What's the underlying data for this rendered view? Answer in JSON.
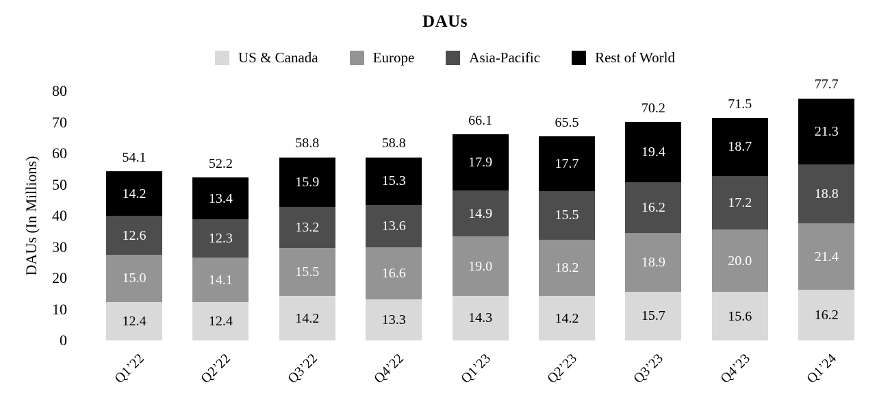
{
  "chart_data": {
    "type": "bar",
    "stacked": true,
    "title": "DAUs",
    "ylabel": "DAUs (In Millions)",
    "xlabel": "",
    "categories": [
      "Q1’22",
      "Q2’22",
      "Q3’22",
      "Q4’22",
      "Q1’23",
      "Q2’23",
      "Q3’23",
      "Q4’23",
      "Q1’24"
    ],
    "series": [
      {
        "name": "US & Canada",
        "color": "#d9d9d9",
        "label_color": "#000000",
        "values": [
          12.4,
          12.4,
          14.2,
          13.3,
          14.3,
          14.2,
          15.7,
          15.6,
          16.2
        ]
      },
      {
        "name": "Europe",
        "color": "#949494",
        "label_color": "#ffffff",
        "values": [
          15.0,
          14.1,
          15.5,
          16.6,
          19.0,
          18.2,
          18.9,
          20.0,
          21.4
        ]
      },
      {
        "name": "Asia-Pacific",
        "color": "#4d4d4d",
        "label_color": "#ffffff",
        "values": [
          12.6,
          12.3,
          13.2,
          13.6,
          14.9,
          15.5,
          16.2,
          17.2,
          18.8
        ]
      },
      {
        "name": "Rest of World",
        "color": "#000000",
        "label_color": "#ffffff",
        "values": [
          14.2,
          13.4,
          15.9,
          15.3,
          17.9,
          17.7,
          19.4,
          18.7,
          21.3
        ]
      }
    ],
    "totals": [
      "54.1",
      "52.2",
      "58.8",
      "58.8",
      "66.1",
      "65.5",
      "70.2",
      "71.5",
      "77.7"
    ],
    "yticks": [
      0,
      10,
      20,
      30,
      40,
      50,
      60,
      70,
      80
    ],
    "ylim": [
      0,
      80
    ],
    "grid": false,
    "legend_position": "top",
    "background_color": "#ffffff",
    "text_color": "#000000"
  }
}
